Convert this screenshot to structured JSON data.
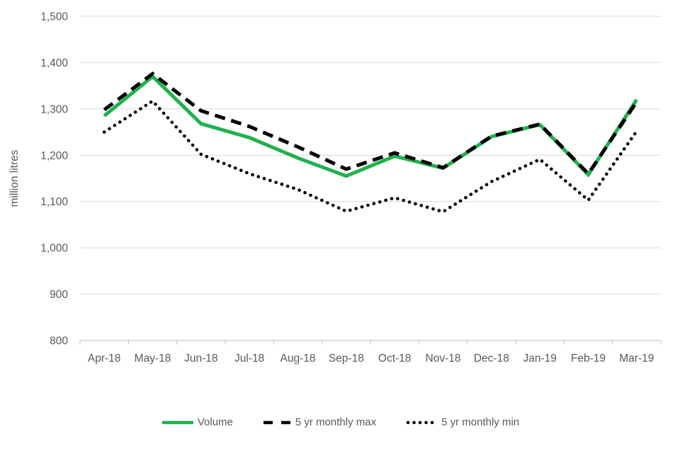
{
  "colors": {
    "volume_green": "#21B14C",
    "series_black": "#000000",
    "grid": "#D9D9D9",
    "axis": "#BFBFBF",
    "text": "#595959"
  },
  "chart_data": {
    "type": "line",
    "title": "",
    "xlabel": "",
    "ylabel": "million litres",
    "ylim": [
      800,
      1500
    ],
    "ytick_step": 100,
    "ytick_labels": [
      "800",
      "900",
      "1,000",
      "1,100",
      "1,200",
      "1,300",
      "1,400",
      "1,500"
    ],
    "grid": "horizontal",
    "legend_position": "bottom",
    "categories": [
      "Apr-18",
      "May-18",
      "Jun-18",
      "Jul-18",
      "Aug-18",
      "Sep-18",
      "Oct-18",
      "Nov-18",
      "Dec-18",
      "Jan-19",
      "Feb-19",
      "Mar-19"
    ],
    "series": [
      {
        "name": "Volume",
        "style": "solid",
        "color": "#21B14C",
        "values": [
          1285,
          1370,
          1268,
          1238,
          1194,
          1155,
          1198,
          1172,
          1240,
          1266,
          1158,
          1320
        ]
      },
      {
        "name": "5 yr monthly max",
        "style": "dashed",
        "color": "#000000",
        "values": [
          1298,
          1376,
          1296,
          1262,
          1218,
          1170,
          1205,
          1173,
          1241,
          1267,
          1160,
          1315
        ]
      },
      {
        "name": "5 yr monthly min",
        "style": "dotted",
        "color": "#000000",
        "values": [
          1250,
          1317,
          1202,
          1160,
          1126,
          1079,
          1108,
          1078,
          1143,
          1191,
          1103,
          1252
        ]
      }
    ]
  }
}
